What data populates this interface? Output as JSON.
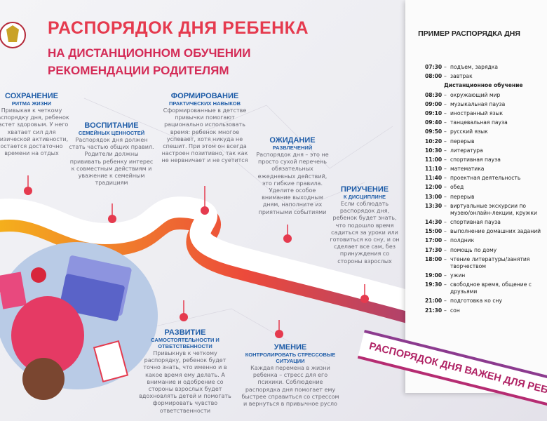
{
  "header": {
    "title": "РАСПОРЯДОК ДНЯ РЕБЕНКА",
    "subtitle": "НА ДИСТАНЦИОННОМ ОБУЧЕНИИ",
    "tagline": "РЕКОМЕНДАЦИИ РОДИТЕЛЯМ"
  },
  "sections": [
    {
      "heading": "СОХРАНЕНИЕ",
      "subheading": "РИТМА ЖИЗНИ",
      "text": "Привыкая к четкому распорядку дня, ребенок растет здоровым. У него хватает сил для физической активности, остается достаточно времени на отдых"
    },
    {
      "heading": "ВОСПИТАНИЕ",
      "subheading": "СЕМЕЙНЫХ ЦЕННОСТЕЙ",
      "text": "Распорядок дня должен стать частью общих правил. Родители должны прививать ребенку интерес к совместным действиям и уважение к семейным традициям"
    },
    {
      "heading": "ФОРМИРОВАНИЕ",
      "subheading": "ПРАКТИЧЕСКИХ НАВЫКОВ",
      "text": "Сформированные в детстве привычки помогают рационально использовать время: ребенок многое успевает, хотя никуда не спешит. При этом он всегда настроен позитивно, так как не нервничает и не суетится"
    },
    {
      "heading": "ОЖИДАНИЕ",
      "subheading": "РАЗВЛЕЧЕНИЙ",
      "text": "Распорядок дня – это не просто сухой перечень обязательных ежедневных действий, это гибкие правила. Уделите особое внимание выходным дням, наполните их приятными событиями"
    },
    {
      "heading": "ПРИУЧЕНИЕ",
      "subheading": "К ДИСЦИПЛИНЕ",
      "text": "Если соблюдать распорядок дня, ребенок будет знать, что подошло время садиться за уроки или готовиться ко сну, и он сделает все сам, без принуждения со стороны взрослых"
    },
    {
      "heading": "РАЗВИТИЕ",
      "subheading": "САМОСТОЯТЕЛЬНОСТИ И ОТВЕТСТВЕННОСТИ",
      "text": "Привыкнув к четкому распорядку, ребенок будет точно знать, что именно и в какое время ему делать. А внимание и одобрение со стороны взрослых будет вдохновлять детей и помогать формировать чувство ответственности"
    },
    {
      "heading": "УМЕНИЕ",
      "subheading": "КОНТРОЛИРОВАТЬ СТРЕССОВЫЕ СИТУАЦИИ",
      "text": "Каждая перемена в жизни ребенка – стресс для его психики. Соблюдение распорядка дня помогает ему быстрее справиться со стрессом и вернуться в привычное русло"
    }
  ],
  "ribbon": "РАСПОРЯДОК ДНЯ ВАЖЕН ДЛЯ РЕБЕНКА",
  "schedule": {
    "title": "ПРИМЕР РАСПОРЯДКА ДНЯ",
    "subheading": "Дистанционное обучение",
    "morning": [
      {
        "time": "07:30",
        "activity": "подъем, зарядка"
      },
      {
        "time": "08:00",
        "activity": "завтрак"
      }
    ],
    "rows": [
      {
        "time": "08:30",
        "activity": "окружающий мир"
      },
      {
        "time": "09:00",
        "activity": "музыкальная пауза"
      },
      {
        "time": "09:10",
        "activity": "иностранный язык"
      },
      {
        "time": "09:40",
        "activity": "танцевальная пауза"
      },
      {
        "time": "09:50",
        "activity": "русский язык"
      },
      {
        "time": "10:20",
        "activity": "перерыв"
      },
      {
        "time": "10:30",
        "activity": "литература"
      },
      {
        "time": "11:00",
        "activity": "спортивная пауза"
      },
      {
        "time": "11:10",
        "activity": "математика"
      },
      {
        "time": "11:40",
        "activity": "проектная деятельность"
      },
      {
        "time": "12:00",
        "activity": "обед"
      },
      {
        "time": "13:00",
        "activity": "перерыв"
      },
      {
        "time": "13:30",
        "activity": "виртуальные экскурсии по музею/онлайн-лекции, кружки"
      },
      {
        "time": "14:30",
        "activity": "спортивная пауза"
      },
      {
        "time": "15:00",
        "activity": "выполнение домашних заданий"
      },
      {
        "time": "17:00",
        "activity": "полдник"
      },
      {
        "time": "17:30",
        "activity": "помощь по дому"
      },
      {
        "time": "18:00",
        "activity": "чтение литературы/занятия творчеством"
      },
      {
        "time": "19:00",
        "activity": "ужин"
      },
      {
        "time": "19:30",
        "activity": "свободное время, общение с друзьями"
      },
      {
        "time": "21:00",
        "activity": "подготовка ко сну"
      },
      {
        "time": "21:30",
        "activity": "сон"
      }
    ]
  }
}
